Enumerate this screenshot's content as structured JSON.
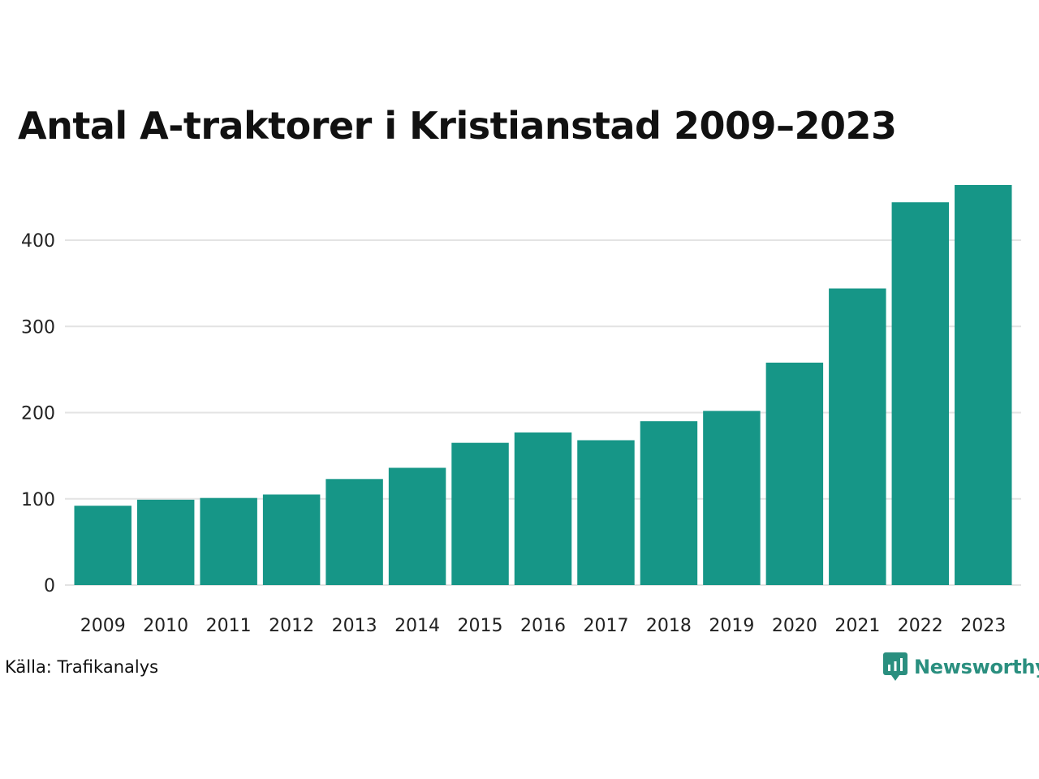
{
  "chart_data": {
    "type": "bar",
    "title": "Antal A-traktorer i Kristianstad 2009–2023",
    "categories": [
      "2009",
      "2010",
      "2011",
      "2012",
      "2013",
      "2014",
      "2015",
      "2016",
      "2017",
      "2018",
      "2019",
      "2020",
      "2021",
      "2022",
      "2023"
    ],
    "values": [
      92,
      99,
      101,
      105,
      123,
      136,
      165,
      177,
      168,
      190,
      202,
      258,
      344,
      444,
      464
    ],
    "y_ticks": [
      0,
      100,
      200,
      300,
      400
    ],
    "ylim": [
      0,
      470
    ],
    "xlabel": "",
    "ylabel": "",
    "grid": true,
    "bar_color": "#169687",
    "grid_color": "#e3e3e3"
  },
  "footer": {
    "source": "Källa: Trafikanalys",
    "brand": "Newsworthy",
    "brand_icon": "newsworthy-logo-icon",
    "brand_color": "#2a8f7f"
  }
}
